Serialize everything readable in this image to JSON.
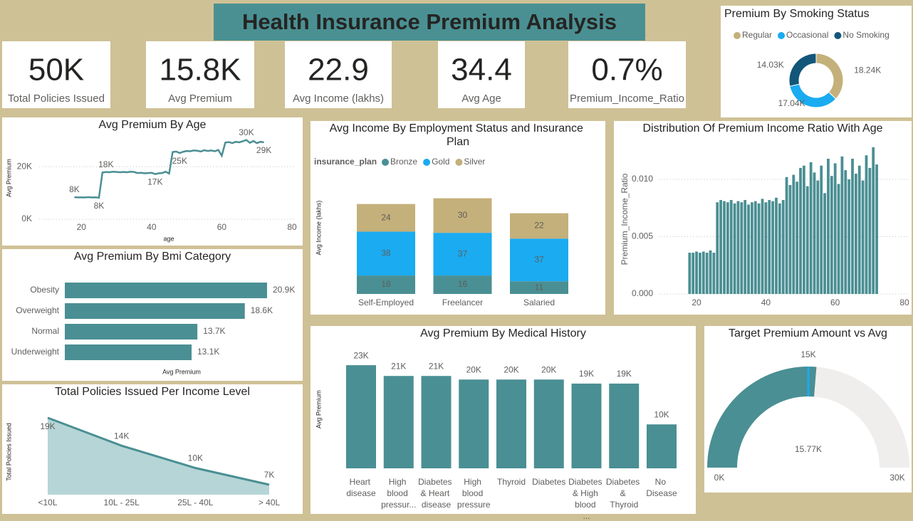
{
  "title": "Health Insurance Premium Analysis",
  "kpis": [
    {
      "value": "50K",
      "label": "Total Policies Issued"
    },
    {
      "value": "15.8K",
      "label": "Avg Premium"
    },
    {
      "value": "22.9",
      "label": "Avg Income (lakhs)"
    },
    {
      "value": "34.4",
      "label": "Avg Age"
    },
    {
      "value": "0.7%",
      "label": "Premium_Income_Ratio"
    }
  ],
  "chart_data": [
    {
      "type": "donut",
      "title": "Premium By Smoking Status",
      "categories": [
        "Regular",
        "Occasional",
        "No Smoking"
      ],
      "values": [
        18240,
        17040,
        14030
      ],
      "value_labels": [
        "18.24K",
        "17.04K",
        "14.03K"
      ],
      "colors": [
        "#c4b07a",
        "#1aabf0",
        "#12567a"
      ],
      "legend": "top"
    },
    {
      "type": "line",
      "title": "Avg Premium By Age",
      "x": [
        18,
        19,
        20,
        21,
        22,
        23,
        24,
        25,
        26,
        27,
        28,
        29,
        30,
        31,
        32,
        33,
        34,
        35,
        36,
        37,
        38,
        39,
        40,
        41,
        42,
        43,
        44,
        45,
        46,
        47,
        48,
        49,
        50,
        51,
        52,
        53,
        54,
        55,
        56,
        57,
        58,
        59,
        60,
        61,
        62,
        63,
        64,
        65,
        66,
        67,
        68,
        69,
        70,
        71,
        72
      ],
      "values": [
        8400,
        8300,
        8350,
        8300,
        8400,
        8300,
        8350,
        8200,
        17800,
        18000,
        17900,
        18100,
        18000,
        17900,
        18000,
        17900,
        18100,
        18000,
        17600,
        17700,
        17500,
        17600,
        17700,
        17200,
        17500,
        17600,
        18100,
        17400,
        25600,
        25800,
        25200,
        25700,
        26000,
        25900,
        26200,
        26100,
        25800,
        26300,
        26000,
        26200,
        25900,
        26400,
        24200,
        29200,
        29400,
        29000,
        29500,
        29300,
        29700,
        30200,
        29100,
        29800,
        29000,
        29500,
        29300
      ],
      "value_labels": [
        "8K",
        null,
        null,
        null,
        null,
        null,
        null,
        "8K",
        null,
        "18K",
        null,
        null,
        null,
        null,
        null,
        null,
        null,
        null,
        null,
        null,
        null,
        null,
        null,
        "17K",
        null,
        null,
        null,
        null,
        null,
        null,
        "25K",
        null,
        null,
        null,
        null,
        null,
        null,
        null,
        null,
        null,
        null,
        null,
        null,
        null,
        null,
        null,
        null,
        null,
        null,
        "30K",
        null,
        null,
        null,
        null,
        "29K"
      ],
      "xlim": [
        10,
        80
      ],
      "xticks": [
        20,
        40,
        60,
        80
      ],
      "ylim": [
        0,
        32000
      ],
      "yticks": [
        {
          "value": 0,
          "label": "0K"
        },
        {
          "value": 20000,
          "label": "20K"
        }
      ],
      "xlabel": "age",
      "ylabel": "Avg Premium",
      "color": "#4a8f93",
      "grid": true
    },
    {
      "type": "bar",
      "orientation": "horizontal",
      "title": "Avg Premium By Bmi Category",
      "categories": [
        "Obesity",
        "Overweight",
        "Normal",
        "Underweight"
      ],
      "values": [
        20900,
        18600,
        13700,
        13100
      ],
      "value_labels": [
        "20.9K",
        "18.6K",
        "13.7K",
        "13.1K"
      ],
      "xlabel": "Avg Premium",
      "color": "#4a8f93"
    },
    {
      "type": "area",
      "title": "Total Policies Issued Per Income Level",
      "categories": [
        "<10L",
        "10L - 25L",
        "25L - 40L",
        "> 40L"
      ],
      "values": [
        19000,
        14000,
        10000,
        7000
      ],
      "value_labels": [
        "19K",
        "14K",
        "10K",
        "7K"
      ],
      "ylabel": "Total Policies Issued",
      "color": "#4a8f93",
      "fill": "#b6d5d6"
    },
    {
      "type": "bar",
      "stacked": true,
      "title": "Avg Income By Employment Status and Insurance Plan",
      "categories": [
        "Self-Employed",
        "Freelancer",
        "Salaried"
      ],
      "legend_title": "insurance_plan",
      "series": [
        {
          "name": "Bronze",
          "color": "#4a8f93",
          "values": [
            16,
            16,
            11
          ]
        },
        {
          "name": "Gold",
          "color": "#1aabf0",
          "values": [
            38,
            37,
            37
          ]
        },
        {
          "name": "Silver",
          "color": "#c4b07a",
          "values": [
            24,
            30,
            22
          ]
        }
      ],
      "ylabel": "Avg Income (lakhs)"
    },
    {
      "type": "bar",
      "title": "Distribution Of Premium Income Ratio With Age",
      "x": [
        18,
        19,
        20,
        21,
        22,
        23,
        24,
        25,
        26,
        27,
        28,
        29,
        30,
        31,
        32,
        33,
        34,
        35,
        36,
        37,
        38,
        39,
        40,
        41,
        42,
        43,
        44,
        45,
        46,
        47,
        48,
        49,
        50,
        51,
        52,
        53,
        54,
        55,
        56,
        57,
        58,
        59,
        60,
        61,
        62,
        63,
        64,
        65,
        66,
        67,
        68,
        69,
        70,
        71,
        72
      ],
      "values": [
        0.0036,
        0.0036,
        0.0037,
        0.0036,
        0.0037,
        0.0036,
        0.0038,
        0.0036,
        0.008,
        0.0082,
        0.0081,
        0.008,
        0.0082,
        0.0079,
        0.0081,
        0.008,
        0.0082,
        0.0078,
        0.008,
        0.0081,
        0.0079,
        0.0083,
        0.008,
        0.0082,
        0.0081,
        0.0084,
        0.0079,
        0.0082,
        0.0102,
        0.0095,
        0.0104,
        0.0098,
        0.011,
        0.0112,
        0.0094,
        0.0115,
        0.0106,
        0.0099,
        0.0112,
        0.0088,
        0.0118,
        0.0103,
        0.0114,
        0.0096,
        0.012,
        0.0108,
        0.01,
        0.0118,
        0.0105,
        0.0112,
        0.0099,
        0.0121,
        0.011,
        0.0128,
        0.0113
      ],
      "xlim": [
        13,
        80
      ],
      "xticks": [
        20,
        40,
        60,
        80
      ],
      "ylim": [
        0,
        0.013
      ],
      "yticks": [
        {
          "value": 0,
          "label": "0.000"
        },
        {
          "value": 0.005,
          "label": "0.005"
        },
        {
          "value": 0.01,
          "label": "0.010"
        }
      ],
      "ylabel": "Premium_Income_Ratio",
      "color": "#4a8f93",
      "grid": true
    },
    {
      "type": "bar",
      "title": "Avg Premium By Medical History",
      "categories": [
        "Heart disease",
        "High blood pressur...",
        "Diabetes & Heart disease",
        "High blood pressure",
        "Thyroid",
        "Diabetes",
        "Diabetes & High blood ...",
        "Diabetes & Thyroid",
        "No Disease"
      ],
      "values": [
        23000,
        20600,
        20600,
        19800,
        19800,
        19800,
        18900,
        18900,
        9800
      ],
      "value_labels": [
        "23K",
        "21K",
        "21K",
        "20K",
        "20K",
        "20K",
        "19K",
        "19K",
        "10K"
      ],
      "ylabel": "Avg Premium",
      "color": "#4a8f93"
    },
    {
      "type": "gauge",
      "title": "Target Premium Amount vs Avg",
      "value": 15770,
      "value_label": "15.77K",
      "target": 15000,
      "target_label": "15K",
      "lim": [
        0,
        30000
      ],
      "ticks": [
        {
          "value": 0,
          "label": "0K"
        },
        {
          "value": 30000,
          "label": "30K"
        }
      ],
      "color": "#4a8f93",
      "target_color": "#1aabf0",
      "track_color": "#efeeed"
    }
  ]
}
